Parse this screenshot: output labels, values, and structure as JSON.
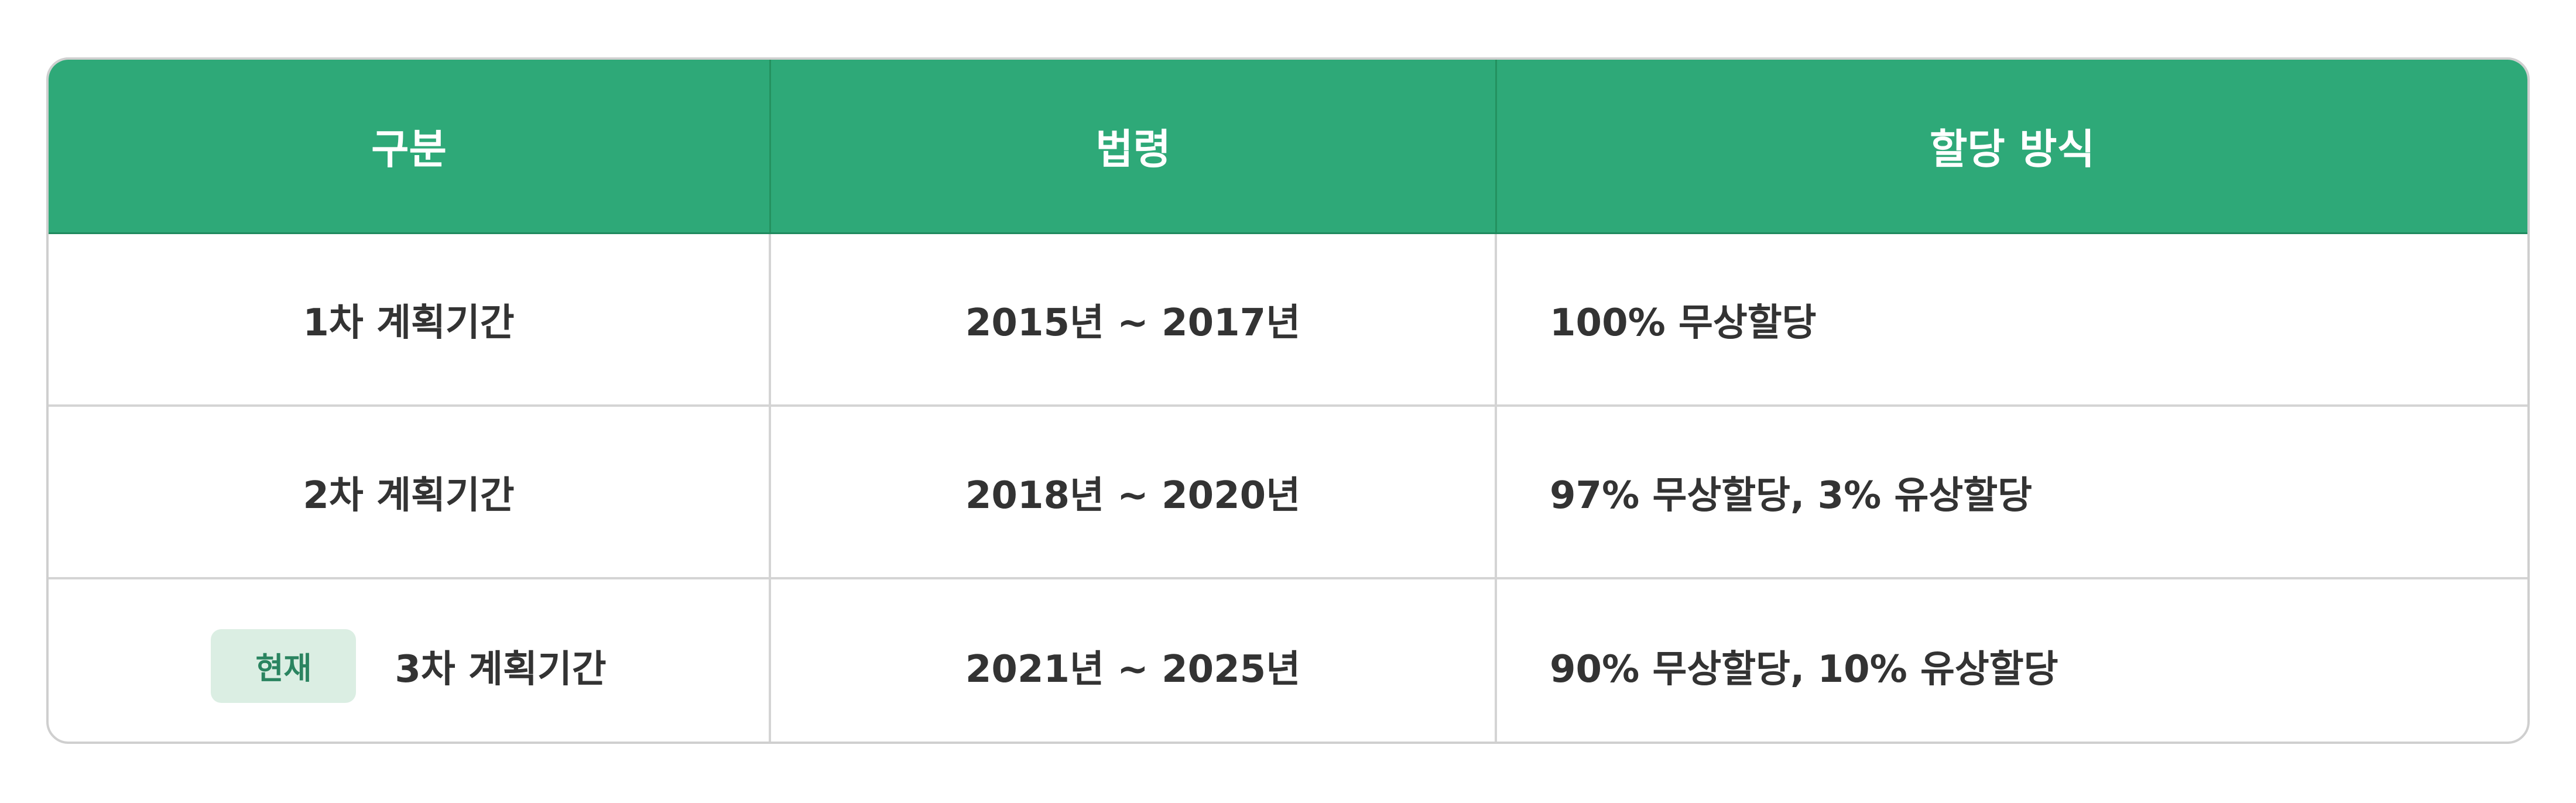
{
  "table": {
    "headers": [
      "구분",
      "법령",
      "할당 방식"
    ],
    "rows": [
      {
        "period": "1차 계획기간",
        "years": "2015년 ~ 2017년",
        "method": "100% 무상할당"
      },
      {
        "period": "2차 계획기간",
        "years": "2018년 ~ 2020년",
        "method": "97% 무상할당, 3% 유상할당"
      },
      {
        "badge": "현재",
        "period": "3차 계획기간",
        "years": "2021년 ~ 2025년",
        "method": "90% 무상할당, 10% 유상할당"
      }
    ]
  },
  "colors": {
    "header": "#2ea978",
    "badge_bg": "#dbeee3",
    "badge_text": "#2a8460",
    "text": "#333333"
  }
}
